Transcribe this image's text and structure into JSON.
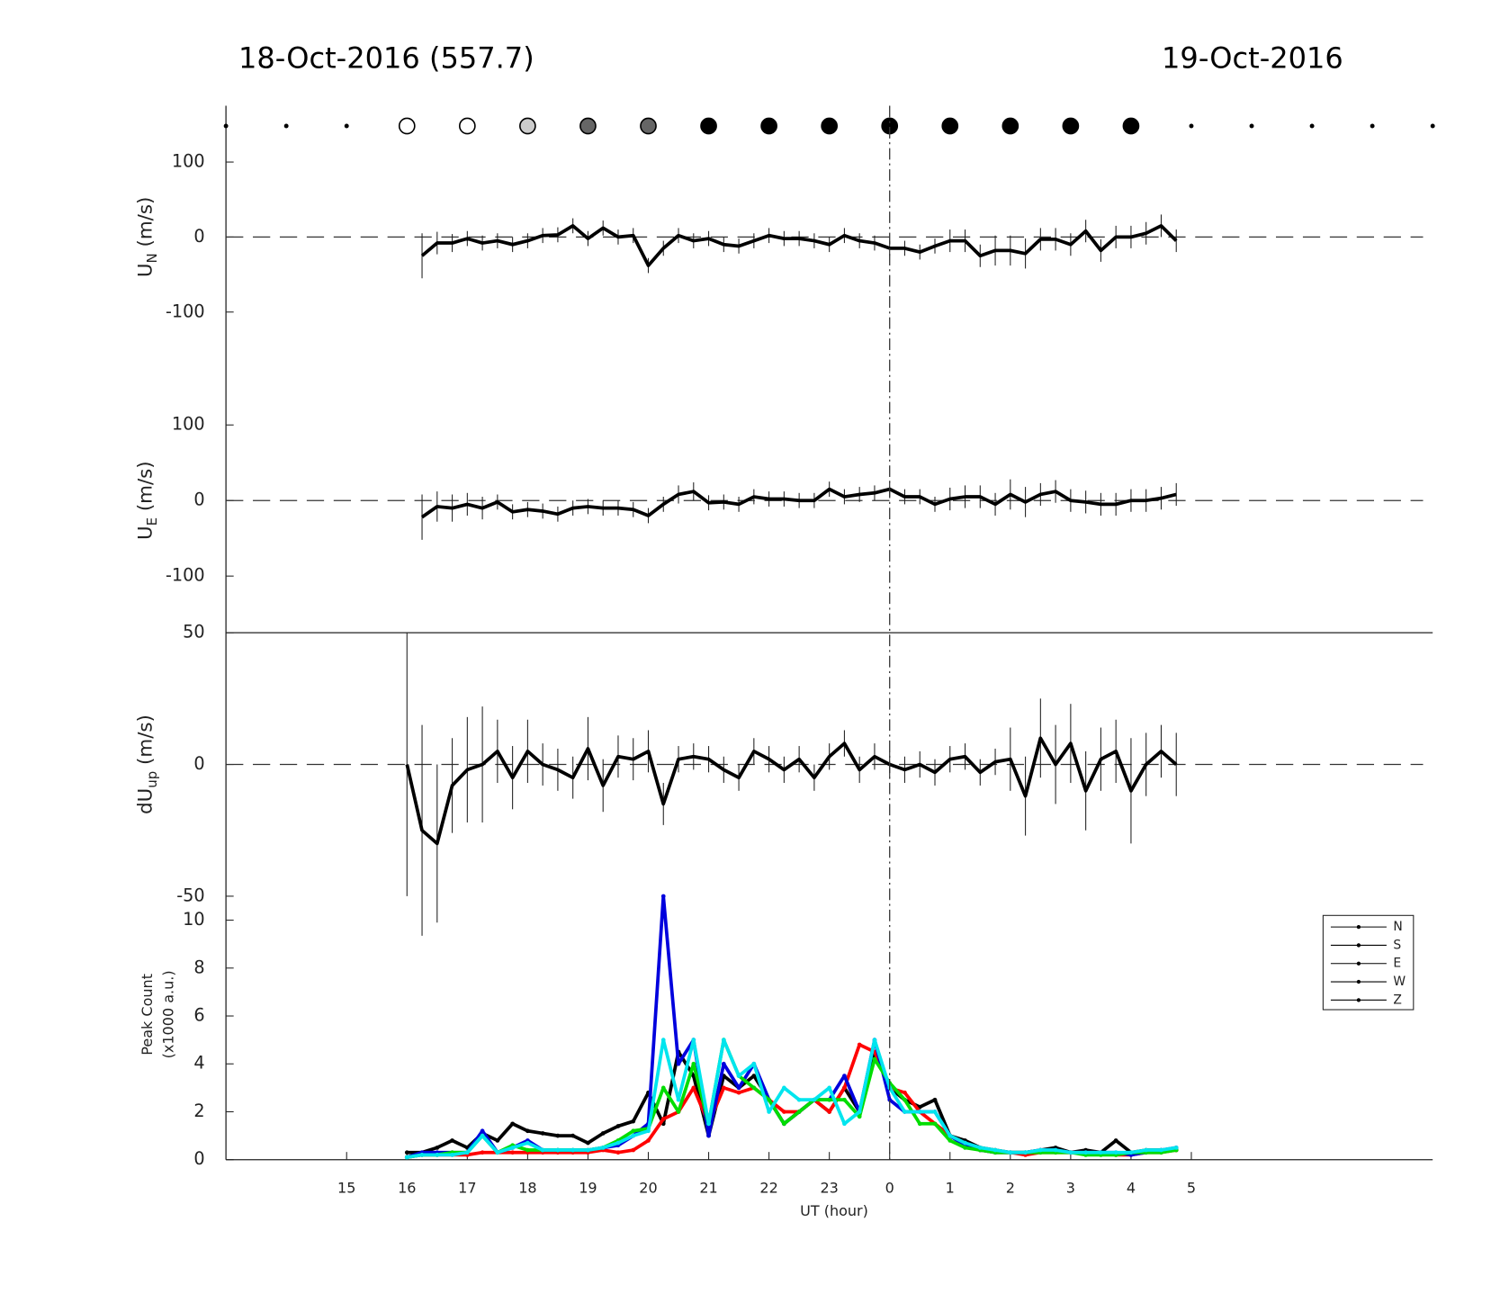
{
  "header": {
    "left": "18-Oct-2016 (557.7)",
    "right": "19-Oct-2016"
  },
  "chart_data": [
    {
      "type": "marker_row",
      "xlim": [
        13,
        33
      ],
      "x": [
        13,
        14,
        15,
        16,
        17,
        18,
        19,
        20,
        21,
        22,
        23,
        24,
        25,
        26,
        27,
        28,
        29,
        30,
        31,
        32,
        33
      ],
      "colors": [
        "#000",
        "#000",
        "#000",
        "#fff",
        "#fff",
        "#ccc",
        "#666",
        "#666",
        "#000",
        "#000",
        "#000",
        "#000",
        "#000",
        "#000",
        "#000",
        "#000",
        "#000",
        "#000",
        "#000",
        "#000",
        "#000"
      ],
      "kinds": [
        "dot",
        "dot",
        "dot",
        "circle",
        "circle",
        "circle",
        "circle",
        "circle",
        "circle",
        "circle",
        "circle",
        "circle",
        "circle",
        "circle",
        "circle",
        "circle",
        "dot",
        "dot",
        "dot",
        "dot",
        "dot"
      ]
    },
    {
      "type": "line",
      "ylabel": {
        "text": "U",
        "sub": "N",
        "unit": " (m/s)"
      },
      "xlim": [
        13,
        33
      ],
      "ylim": [
        -175,
        175
      ],
      "yticks": [
        -100,
        0,
        100
      ],
      "hline": 0,
      "x": [
        16,
        16.25,
        16.5,
        16.75,
        17,
        17.25,
        17.5,
        17.75,
        18,
        18.25,
        18.5,
        18.75,
        19,
        19.25,
        19.5,
        19.75,
        20,
        20.25,
        20.5,
        20.75,
        21,
        21.25,
        21.5,
        21.75,
        22,
        22.25,
        22.5,
        22.75,
        23,
        23.25,
        23.5,
        23.75,
        24,
        24.25,
        24.5,
        24.75,
        25,
        25.25,
        25.5,
        25.75,
        26,
        26.25,
        26.5,
        26.75,
        27,
        27.25,
        27.5,
        27.75,
        28,
        28.25,
        28.5,
        28.75
      ],
      "series": [
        {
          "color": "#000",
          "values": [
            null,
            -25,
            -8,
            -8,
            -2,
            -8,
            -5,
            -10,
            -5,
            2,
            3,
            15,
            -2,
            12,
            0,
            2,
            -38,
            -15,
            2,
            -5,
            -2,
            -10,
            -12,
            -5,
            2,
            -2,
            -2,
            -5,
            -10,
            2,
            -5,
            -8,
            -15,
            -15,
            -20,
            -12,
            -5,
            -5,
            -25,
            -18,
            -18,
            -22,
            -3,
            -3,
            -10,
            8,
            -18,
            0,
            0,
            5,
            15,
            -5
          ],
          "errors": [
            null,
            30,
            15,
            12,
            10,
            10,
            10,
            10,
            10,
            10,
            10,
            10,
            10,
            10,
            10,
            10,
            10,
            10,
            10,
            10,
            10,
            10,
            10,
            10,
            10,
            10,
            10,
            10,
            10,
            10,
            10,
            10,
            10,
            10,
            10,
            10,
            15,
            15,
            15,
            20,
            20,
            20,
            15,
            15,
            15,
            15,
            15,
            15,
            15,
            15,
            15,
            15
          ]
        }
      ]
    },
    {
      "type": "line",
      "ylabel": {
        "text": "U",
        "sub": "E",
        "unit": " (m/s)"
      },
      "xlim": [
        13,
        33
      ],
      "ylim": [
        -175,
        175
      ],
      "yticks": [
        -100,
        0,
        100
      ],
      "hline": 0,
      "x": [
        16,
        16.25,
        16.5,
        16.75,
        17,
        17.25,
        17.5,
        17.75,
        18,
        18.25,
        18.5,
        18.75,
        19,
        19.25,
        19.5,
        19.75,
        20,
        20.25,
        20.5,
        20.75,
        21,
        21.25,
        21.5,
        21.75,
        22,
        22.25,
        22.5,
        22.75,
        23,
        23.25,
        23.5,
        23.75,
        24,
        24.25,
        24.5,
        24.75,
        25,
        25.25,
        25.5,
        25.75,
        26,
        26.25,
        26.5,
        26.75,
        27,
        27.25,
        27.5,
        27.75,
        28,
        28.25,
        28.5,
        28.75
      ],
      "series": [
        {
          "color": "#000",
          "values": [
            null,
            -22,
            -8,
            -10,
            -5,
            -10,
            -2,
            -15,
            -12,
            -14,
            -18,
            -10,
            -8,
            -10,
            -10,
            -12,
            -20,
            -5,
            8,
            12,
            -3,
            -2,
            -5,
            5,
            2,
            2,
            0,
            0,
            15,
            5,
            8,
            10,
            15,
            5,
            5,
            -5,
            2,
            5,
            5,
            -5,
            8,
            -2,
            8,
            12,
            0,
            -2,
            -5,
            -5,
            0,
            0,
            3,
            8
          ],
          "errors": [
            null,
            30,
            20,
            18,
            15,
            15,
            10,
            10,
            10,
            10,
            10,
            10,
            10,
            10,
            10,
            10,
            10,
            10,
            12,
            12,
            10,
            10,
            10,
            10,
            10,
            10,
            10,
            10,
            10,
            10,
            10,
            10,
            10,
            10,
            10,
            10,
            15,
            15,
            15,
            15,
            20,
            20,
            15,
            15,
            15,
            15,
            15,
            15,
            15,
            15,
            15,
            15
          ]
        }
      ]
    },
    {
      "type": "line",
      "ylabel": {
        "text": "dU",
        "sub": "up",
        "unit": " (m/s)"
      },
      "xlim": [
        13,
        33
      ],
      "ylim": [
        -50,
        50
      ],
      "yticks": [
        -50,
        0,
        50
      ],
      "hline": 0,
      "x": [
        16,
        16.25,
        16.5,
        16.75,
        17,
        17.25,
        17.5,
        17.75,
        18,
        18.25,
        18.5,
        18.75,
        19,
        19.25,
        19.5,
        19.75,
        20,
        20.25,
        20.5,
        20.75,
        21,
        21.25,
        21.5,
        21.75,
        22,
        22.25,
        22.5,
        22.75,
        23,
        23.25,
        23.5,
        23.75,
        24,
        24.25,
        24.5,
        24.75,
        25,
        25.25,
        25.5,
        25.75,
        26,
        26.25,
        26.5,
        26.75,
        27,
        27.25,
        27.5,
        27.75,
        28,
        28.25,
        28.5,
        28.75
      ],
      "series": [
        {
          "color": "#000",
          "values": [
            0,
            -25,
            -30,
            -8,
            -2,
            0,
            5,
            -5,
            5,
            0,
            -2,
            -5,
            6,
            -8,
            3,
            2,
            5,
            -15,
            2,
            3,
            2,
            -2,
            -5,
            5,
            2,
            -2,
            2,
            -5,
            3,
            8,
            -2,
            3,
            0,
            -2,
            0,
            -3,
            2,
            3,
            -3,
            1,
            2,
            -12,
            10,
            0,
            8,
            -10,
            2,
            5,
            -10,
            0,
            5,
            0
          ],
          "errors": [
            50,
            40,
            30,
            18,
            20,
            22,
            12,
            12,
            12,
            8,
            8,
            8,
            12,
            10,
            8,
            8,
            8,
            8,
            5,
            5,
            5,
            5,
            5,
            5,
            5,
            5,
            5,
            5,
            5,
            5,
            5,
            5,
            5,
            5,
            5,
            5,
            5,
            5,
            5,
            5,
            12,
            15,
            15,
            15,
            15,
            15,
            12,
            12,
            20,
            12,
            10,
            12
          ]
        }
      ]
    },
    {
      "type": "line",
      "markers": true,
      "ylabel_lines": [
        "Peak Count",
        "(x1000 a.u.)"
      ],
      "xlabel": "UT (hour)",
      "legend": "upper right",
      "vline": 24,
      "xlim": [
        13,
        33
      ],
      "ylim": [
        0,
        11
      ],
      "yticks": [
        0,
        2,
        4,
        6,
        8,
        10
      ],
      "xticks": [
        15,
        16,
        17,
        18,
        19,
        20,
        21,
        22,
        23,
        {
          "value": 24,
          "label": "0"
        },
        {
          "value": 25,
          "label": "1"
        },
        {
          "value": 26,
          "label": "2"
        },
        {
          "value": 27,
          "label": "3"
        },
        {
          "value": 28,
          "label": "4"
        },
        {
          "value": 29,
          "label": "5"
        }
      ],
      "x": [
        16,
        16.25,
        16.5,
        16.75,
        17,
        17.25,
        17.5,
        17.75,
        18,
        18.25,
        18.5,
        18.75,
        19,
        19.25,
        19.5,
        19.75,
        20,
        20.25,
        20.5,
        20.75,
        21,
        21.25,
        21.5,
        21.75,
        22,
        22.25,
        22.5,
        22.75,
        23,
        23.25,
        23.5,
        23.75,
        24,
        24.25,
        24.5,
        24.75,
        25,
        25.25,
        25.5,
        25.75,
        26,
        26.25,
        26.5,
        26.75,
        27,
        27.25,
        27.5,
        27.75,
        28,
        28.25,
        28.5,
        28.75
      ],
      "series": [
        {
          "name": "N",
          "color": "#000",
          "values": [
            0.3,
            0.3,
            0.5,
            0.8,
            0.5,
            1.1,
            0.8,
            1.5,
            1.2,
            1.1,
            1.0,
            1.0,
            0.7,
            1.1,
            1.4,
            1.6,
            2.8,
            1.5,
            4.5,
            3.5,
            1.0,
            3.5,
            3.0,
            3.5,
            2.5,
            1.5,
            2.0,
            2.5,
            2.0,
            3.0,
            2.0,
            4.5,
            3.0,
            2.5,
            2.2,
            2.5,
            1.0,
            0.8,
            0.5,
            0.4,
            0.3,
            0.3,
            0.4,
            0.5,
            0.3,
            0.4,
            0.3,
            0.8,
            0.3,
            0.4,
            0.4,
            0.4
          ]
        },
        {
          "name": "S",
          "color": "#ff0000",
          "values": [
            0.1,
            0.2,
            0.2,
            0.2,
            0.2,
            0.3,
            0.3,
            0.3,
            0.3,
            0.3,
            0.3,
            0.3,
            0.3,
            0.4,
            0.3,
            0.4,
            0.8,
            1.7,
            2.0,
            3.0,
            1.5,
            3.0,
            2.8,
            3.0,
            2.5,
            2.0,
            2.0,
            2.5,
            2.0,
            3.0,
            4.8,
            4.5,
            3.0,
            2.8,
            2.0,
            1.5,
            1.0,
            0.6,
            0.4,
            0.3,
            0.3,
            0.2,
            0.3,
            0.3,
            0.3,
            0.3,
            0.3,
            0.2,
            0.2,
            0.3,
            0.3,
            0.4
          ]
        },
        {
          "name": "E",
          "color": "#0000dd",
          "values": [
            0.1,
            0.3,
            0.3,
            0.3,
            0.3,
            1.2,
            0.3,
            0.5,
            0.8,
            0.4,
            0.4,
            0.4,
            0.4,
            0.5,
            0.6,
            1.0,
            1.5,
            11,
            4.0,
            5.0,
            1.0,
            4.0,
            3.0,
            4.0,
            2.5,
            1.5,
            2.0,
            2.5,
            2.5,
            3.5,
            2.0,
            5.0,
            2.5,
            2.0,
            2.0,
            2.0,
            1.0,
            0.6,
            0.4,
            0.3,
            0.3,
            0.3,
            0.4,
            0.4,
            0.3,
            0.3,
            0.3,
            0.3,
            0.2,
            0.3,
            0.4,
            0.5
          ]
        },
        {
          "name": "W",
          "color": "#00dd00",
          "values": [
            0.1,
            0.2,
            0.2,
            0.3,
            0.3,
            1.0,
            0.3,
            0.6,
            0.4,
            0.4,
            0.4,
            0.4,
            0.4,
            0.5,
            0.8,
            1.2,
            1.3,
            3.0,
            2.0,
            4.0,
            1.5,
            5.0,
            3.5,
            3.0,
            2.5,
            1.5,
            2.0,
            2.5,
            2.5,
            2.5,
            1.8,
            4.2,
            3.2,
            2.5,
            1.5,
            1.5,
            0.8,
            0.5,
            0.4,
            0.3,
            0.3,
            0.3,
            0.3,
            0.3,
            0.3,
            0.2,
            0.2,
            0.2,
            0.3,
            0.3,
            0.3,
            0.4
          ]
        },
        {
          "name": "Z",
          "color": "#00e5ee",
          "values": [
            0.1,
            0.2,
            0.2,
            0.2,
            0.3,
            1.0,
            0.3,
            0.5,
            0.7,
            0.4,
            0.4,
            0.4,
            0.4,
            0.5,
            0.7,
            1.0,
            1.2,
            5.0,
            2.5,
            5.0,
            1.5,
            5.0,
            3.5,
            4.0,
            2.0,
            3.0,
            2.5,
            2.5,
            3.0,
            1.5,
            2.0,
            5.0,
            3.0,
            2.0,
            2.0,
            2.0,
            1.0,
            0.7,
            0.5,
            0.4,
            0.3,
            0.3,
            0.4,
            0.4,
            0.3,
            0.3,
            0.3,
            0.3,
            0.3,
            0.4,
            0.4,
            0.5
          ]
        }
      ]
    }
  ]
}
